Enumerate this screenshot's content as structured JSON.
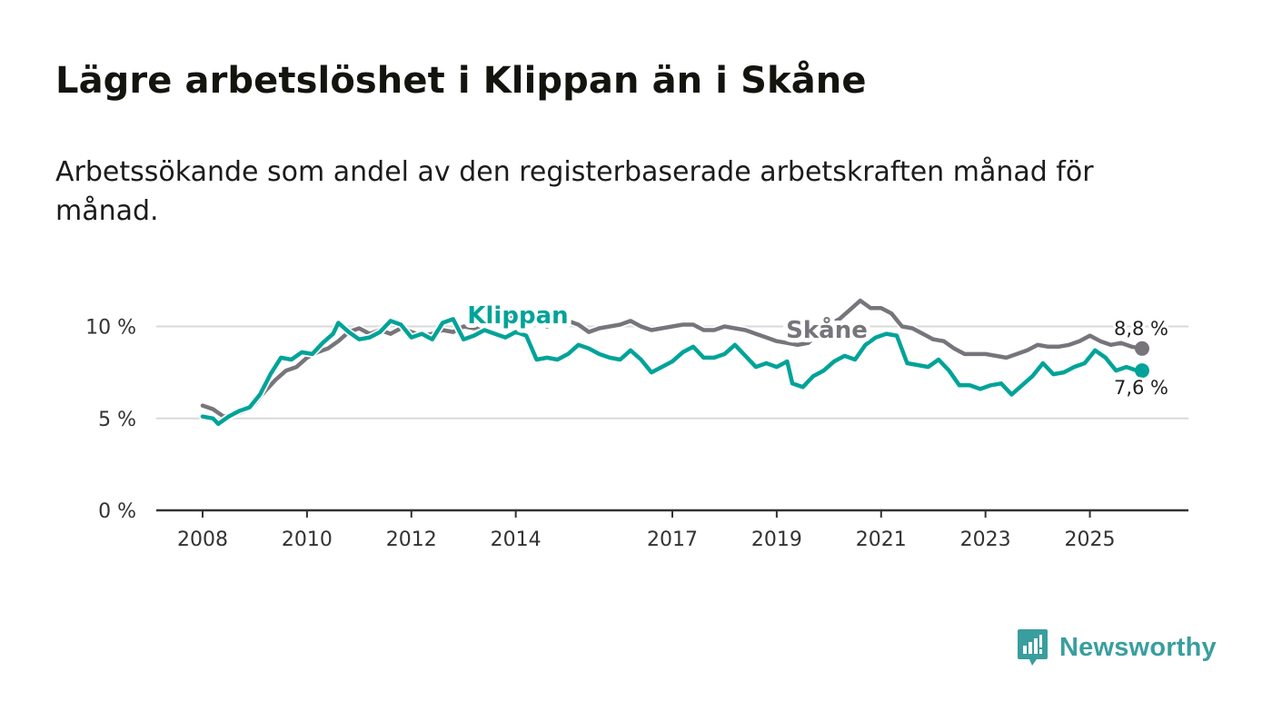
{
  "header": {
    "title": "Lägre arbetslöshet i Klippan än i Skåne",
    "subtitle": "Arbetssökande som andel av den registerbaserade arbetskraften månad för månad."
  },
  "brand": {
    "name": "Newsworthy",
    "icon": "newsworthy-logo-icon",
    "color": "#3a9e9e"
  },
  "chart_data": {
    "type": "line",
    "title": "Lägre arbetslöshet i Klippan än i Skåne",
    "subtitle": "Arbetssökande som andel av den registerbaserade arbetskraften månad för månad.",
    "xlabel": "",
    "ylabel": "",
    "xlim": [
      2007.8,
      2026.6
    ],
    "ylim": [
      0,
      11.5
    ],
    "grid": true,
    "x_ticks": [
      {
        "value": 2008,
        "label": "2008"
      },
      {
        "value": 2010,
        "label": "2010"
      },
      {
        "value": 2012,
        "label": "2012"
      },
      {
        "value": 2014,
        "label": "2014"
      },
      {
        "value": 2017,
        "label": "2017"
      },
      {
        "value": 2019,
        "label": "2019"
      },
      {
        "value": 2021,
        "label": "2021"
      },
      {
        "value": 2023,
        "label": "2023"
      },
      {
        "value": 2025,
        "label": "2025"
      }
    ],
    "y_ticks": [
      {
        "value": 0,
        "label": "0 %"
      },
      {
        "value": 5,
        "label": "5 %"
      },
      {
        "value": 10,
        "label": "10 %"
      }
    ],
    "series": [
      {
        "name": "Skåne",
        "color": "#77757b",
        "end_label": "8,8 %",
        "points": [
          [
            2008.0,
            5.7
          ],
          [
            2008.2,
            5.5
          ],
          [
            2008.4,
            5.1
          ],
          [
            2008.6,
            5.2
          ],
          [
            2008.8,
            5.4
          ],
          [
            2009.0,
            5.8
          ],
          [
            2009.2,
            6.5
          ],
          [
            2009.4,
            7.1
          ],
          [
            2009.6,
            7.6
          ],
          [
            2009.8,
            7.8
          ],
          [
            2010.0,
            8.3
          ],
          [
            2010.2,
            8.6
          ],
          [
            2010.4,
            8.8
          ],
          [
            2010.6,
            9.2
          ],
          [
            2010.8,
            9.7
          ],
          [
            2011.0,
            9.9
          ],
          [
            2011.2,
            9.6
          ],
          [
            2011.4,
            9.8
          ],
          [
            2011.6,
            9.6
          ],
          [
            2011.8,
            9.9
          ],
          [
            2012.0,
            9.7
          ],
          [
            2012.2,
            9.5
          ],
          [
            2012.4,
            9.6
          ],
          [
            2012.6,
            9.8
          ],
          [
            2012.8,
            9.7
          ],
          [
            2013.0,
            10.0
          ],
          [
            2013.2,
            9.9
          ],
          [
            2013.4,
            10.1
          ],
          [
            2013.6,
            10.3
          ],
          [
            2013.8,
            10.5
          ],
          [
            2014.0,
            10.5
          ],
          [
            2014.2,
            10.3
          ],
          [
            2014.4,
            10.3
          ],
          [
            2014.6,
            10.0
          ],
          [
            2014.8,
            10.2
          ],
          [
            2015.0,
            10.3
          ],
          [
            2015.2,
            10.1
          ],
          [
            2015.4,
            9.7
          ],
          [
            2015.6,
            9.9
          ],
          [
            2015.8,
            10.0
          ],
          [
            2016.0,
            10.1
          ],
          [
            2016.2,
            10.3
          ],
          [
            2016.4,
            10.0
          ],
          [
            2016.6,
            9.8
          ],
          [
            2016.8,
            9.9
          ],
          [
            2017.0,
            10.0
          ],
          [
            2017.2,
            10.1
          ],
          [
            2017.4,
            10.1
          ],
          [
            2017.6,
            9.8
          ],
          [
            2017.8,
            9.8
          ],
          [
            2018.0,
            10.0
          ],
          [
            2018.2,
            9.9
          ],
          [
            2018.4,
            9.8
          ],
          [
            2018.6,
            9.6
          ],
          [
            2018.8,
            9.4
          ],
          [
            2019.0,
            9.2
          ],
          [
            2019.2,
            9.1
          ],
          [
            2019.4,
            9.0
          ],
          [
            2019.6,
            9.1
          ],
          [
            2019.8,
            9.6
          ],
          [
            2020.0,
            10.1
          ],
          [
            2020.2,
            10.4
          ],
          [
            2020.4,
            10.9
          ],
          [
            2020.6,
            11.4
          ],
          [
            2020.8,
            11.0
          ],
          [
            2021.0,
            11.0
          ],
          [
            2021.2,
            10.7
          ],
          [
            2021.4,
            10.0
          ],
          [
            2021.6,
            9.9
          ],
          [
            2021.8,
            9.6
          ],
          [
            2022.0,
            9.3
          ],
          [
            2022.2,
            9.2
          ],
          [
            2022.4,
            8.8
          ],
          [
            2022.6,
            8.5
          ],
          [
            2022.8,
            8.5
          ],
          [
            2023.0,
            8.5
          ],
          [
            2023.2,
            8.4
          ],
          [
            2023.4,
            8.3
          ],
          [
            2023.6,
            8.5
          ],
          [
            2023.8,
            8.7
          ],
          [
            2024.0,
            9.0
          ],
          [
            2024.2,
            8.9
          ],
          [
            2024.4,
            8.9
          ],
          [
            2024.6,
            9.0
          ],
          [
            2024.8,
            9.2
          ],
          [
            2025.0,
            9.5
          ],
          [
            2025.2,
            9.2
          ],
          [
            2025.4,
            9.0
          ],
          [
            2025.6,
            9.1
          ],
          [
            2025.8,
            8.9
          ],
          [
            2026.0,
            8.8
          ]
        ]
      },
      {
        "name": "Klippan",
        "color": "#00a399",
        "end_label": "7,6 %",
        "points": [
          [
            2008.0,
            5.1
          ],
          [
            2008.2,
            5.0
          ],
          [
            2008.3,
            4.7
          ],
          [
            2008.5,
            5.1
          ],
          [
            2008.7,
            5.4
          ],
          [
            2008.9,
            5.6
          ],
          [
            2009.1,
            6.3
          ],
          [
            2009.3,
            7.4
          ],
          [
            2009.5,
            8.3
          ],
          [
            2009.7,
            8.2
          ],
          [
            2009.9,
            8.6
          ],
          [
            2010.1,
            8.5
          ],
          [
            2010.3,
            9.1
          ],
          [
            2010.5,
            9.6
          ],
          [
            2010.6,
            10.2
          ],
          [
            2010.8,
            9.7
          ],
          [
            2011.0,
            9.3
          ],
          [
            2011.2,
            9.4
          ],
          [
            2011.4,
            9.7
          ],
          [
            2011.6,
            10.3
          ],
          [
            2011.8,
            10.1
          ],
          [
            2012.0,
            9.4
          ],
          [
            2012.2,
            9.6
          ],
          [
            2012.4,
            9.3
          ],
          [
            2012.6,
            10.2
          ],
          [
            2012.8,
            10.4
          ],
          [
            2013.0,
            9.3
          ],
          [
            2013.2,
            9.5
          ],
          [
            2013.4,
            9.8
          ],
          [
            2013.6,
            9.6
          ],
          [
            2013.8,
            9.4
          ],
          [
            2014.0,
            9.7
          ],
          [
            2014.2,
            9.5
          ],
          [
            2014.4,
            8.2
          ],
          [
            2014.6,
            8.3
          ],
          [
            2014.8,
            8.2
          ],
          [
            2015.0,
            8.5
          ],
          [
            2015.2,
            9.0
          ],
          [
            2015.4,
            8.8
          ],
          [
            2015.6,
            8.5
          ],
          [
            2015.8,
            8.3
          ],
          [
            2016.0,
            8.2
          ],
          [
            2016.2,
            8.7
          ],
          [
            2016.4,
            8.2
          ],
          [
            2016.6,
            7.5
          ],
          [
            2016.8,
            7.8
          ],
          [
            2017.0,
            8.1
          ],
          [
            2017.2,
            8.6
          ],
          [
            2017.4,
            8.9
          ],
          [
            2017.6,
            8.3
          ],
          [
            2017.8,
            8.3
          ],
          [
            2018.0,
            8.5
          ],
          [
            2018.2,
            9.0
          ],
          [
            2018.4,
            8.4
          ],
          [
            2018.6,
            7.8
          ],
          [
            2018.8,
            8.0
          ],
          [
            2019.0,
            7.8
          ],
          [
            2019.2,
            8.1
          ],
          [
            2019.3,
            6.9
          ],
          [
            2019.5,
            6.7
          ],
          [
            2019.7,
            7.3
          ],
          [
            2019.9,
            7.6
          ],
          [
            2020.1,
            8.1
          ],
          [
            2020.3,
            8.4
          ],
          [
            2020.5,
            8.2
          ],
          [
            2020.7,
            9.0
          ],
          [
            2020.9,
            9.4
          ],
          [
            2021.1,
            9.6
          ],
          [
            2021.3,
            9.5
          ],
          [
            2021.5,
            8.0
          ],
          [
            2021.7,
            7.9
          ],
          [
            2021.9,
            7.8
          ],
          [
            2022.1,
            8.2
          ],
          [
            2022.3,
            7.6
          ],
          [
            2022.5,
            6.8
          ],
          [
            2022.7,
            6.8
          ],
          [
            2022.9,
            6.6
          ],
          [
            2023.1,
            6.8
          ],
          [
            2023.3,
            6.9
          ],
          [
            2023.5,
            6.3
          ],
          [
            2023.7,
            6.8
          ],
          [
            2023.9,
            7.3
          ],
          [
            2024.1,
            8.0
          ],
          [
            2024.3,
            7.4
          ],
          [
            2024.5,
            7.5
          ],
          [
            2024.7,
            7.8
          ],
          [
            2024.9,
            8.0
          ],
          [
            2025.1,
            8.7
          ],
          [
            2025.3,
            8.3
          ],
          [
            2025.5,
            7.6
          ],
          [
            2025.7,
            7.8
          ],
          [
            2025.9,
            7.6
          ],
          [
            2026.0,
            7.6
          ]
        ]
      }
    ]
  }
}
